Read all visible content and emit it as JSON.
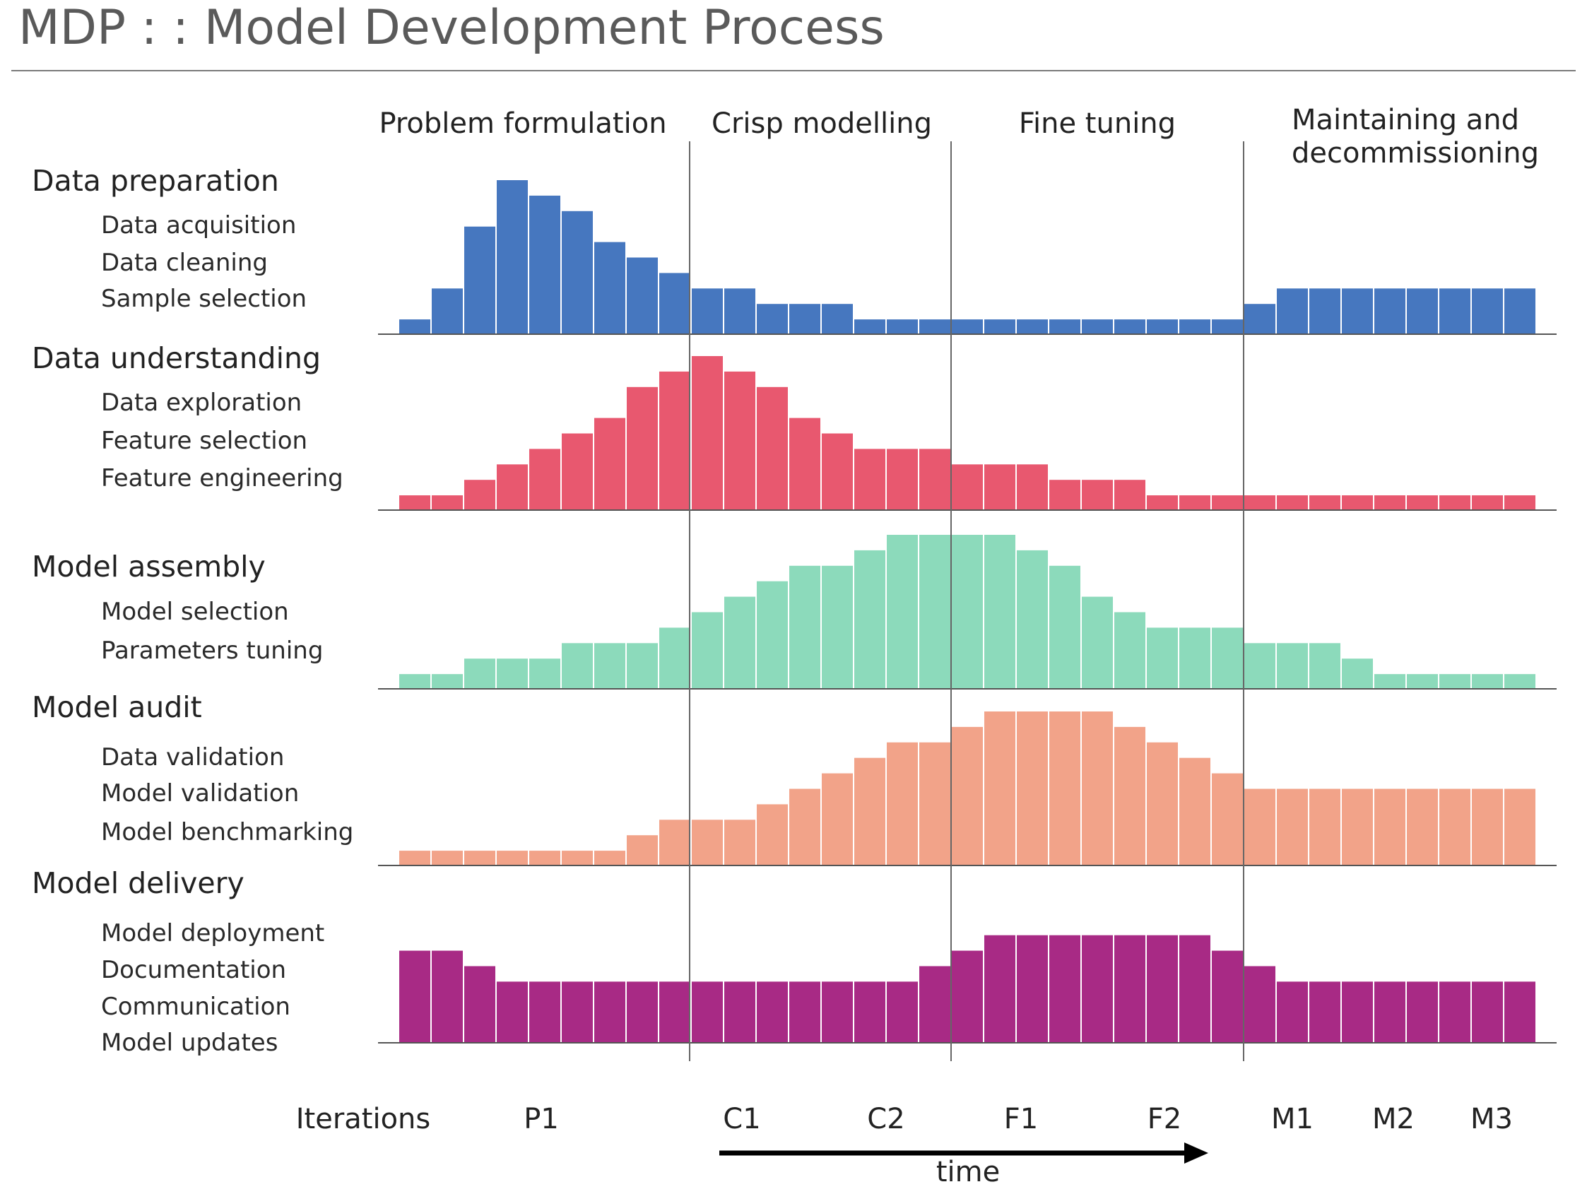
{
  "title": "MDP  : :  Model Development Process",
  "phases": [
    "Problem formulation",
    "Crisp modelling",
    "Fine tuning",
    "Maintaining and",
    "decommissioning"
  ],
  "iterations_label": "Iterations",
  "iterations": [
    "P1",
    "C1",
    "C2",
    "F1",
    "F2",
    "M1",
    "M2",
    "M3"
  ],
  "time_label": "time",
  "chart_data": {
    "type": "bar",
    "title": "MDP  : :  Model Development Process",
    "xlabel": "Iterations",
    "x_axis_note": "time",
    "ylim": [
      0,
      10
    ],
    "grid": false,
    "series": [
      {
        "name": "Data preparation",
        "color": "#4677bf",
        "subtasks": [
          "Data acquisition",
          "Data cleaning",
          "Sample selection"
        ],
        "values": [
          1,
          3,
          7,
          10,
          9,
          8,
          6,
          5,
          4,
          3,
          3,
          2,
          2,
          2,
          1,
          1,
          1,
          1,
          1,
          1,
          1,
          1,
          1,
          1,
          1,
          1,
          2,
          3,
          3,
          3,
          3,
          3,
          3,
          3,
          3
        ]
      },
      {
        "name": "Data understanding",
        "color": "#e8586f",
        "subtasks": [
          "Data exploration",
          "Feature selection",
          "Feature engineering"
        ],
        "values": [
          1,
          1,
          2,
          3,
          4,
          5,
          6,
          8,
          9,
          10,
          9,
          8,
          6,
          5,
          4,
          4,
          4,
          3,
          3,
          3,
          2,
          2,
          2,
          1,
          1,
          1,
          1,
          1,
          1,
          1,
          1,
          1,
          1,
          1,
          1
        ]
      },
      {
        "name": "Model assembly",
        "color": "#8cdabb",
        "subtasks": [
          "Model selection",
          "Parameters tuning"
        ],
        "values": [
          1,
          1,
          2,
          2,
          2,
          3,
          3,
          3,
          4,
          5,
          6,
          7,
          8,
          8,
          9,
          10,
          10,
          10,
          10,
          9,
          8,
          6,
          5,
          4,
          4,
          4,
          3,
          3,
          3,
          2,
          1,
          1,
          1,
          1,
          1
        ]
      },
      {
        "name": "Model audit",
        "color": "#f2a389",
        "subtasks": [
          "Data validation",
          "Model validation",
          "Model benchmarking"
        ],
        "values": [
          1,
          1,
          1,
          1,
          1,
          1,
          1,
          2,
          3,
          3,
          3,
          4,
          5,
          6,
          7,
          8,
          8,
          9,
          10,
          10,
          10,
          10,
          9,
          8,
          7,
          6,
          5,
          5,
          5,
          5,
          5,
          5,
          5,
          5,
          5
        ]
      },
      {
        "name": "Model delivery",
        "color": "#a82a85",
        "subtasks": [
          "Model deployment",
          "Documentation",
          "Communication",
          "Model updates"
        ],
        "values": [
          6,
          6,
          5,
          4,
          4,
          4,
          4,
          4,
          4,
          4,
          4,
          4,
          4,
          4,
          4,
          4,
          5,
          6,
          7,
          7,
          7,
          7,
          7,
          7,
          7,
          6,
          5,
          4,
          4,
          4,
          4,
          4,
          4,
          4,
          4
        ]
      }
    ]
  }
}
